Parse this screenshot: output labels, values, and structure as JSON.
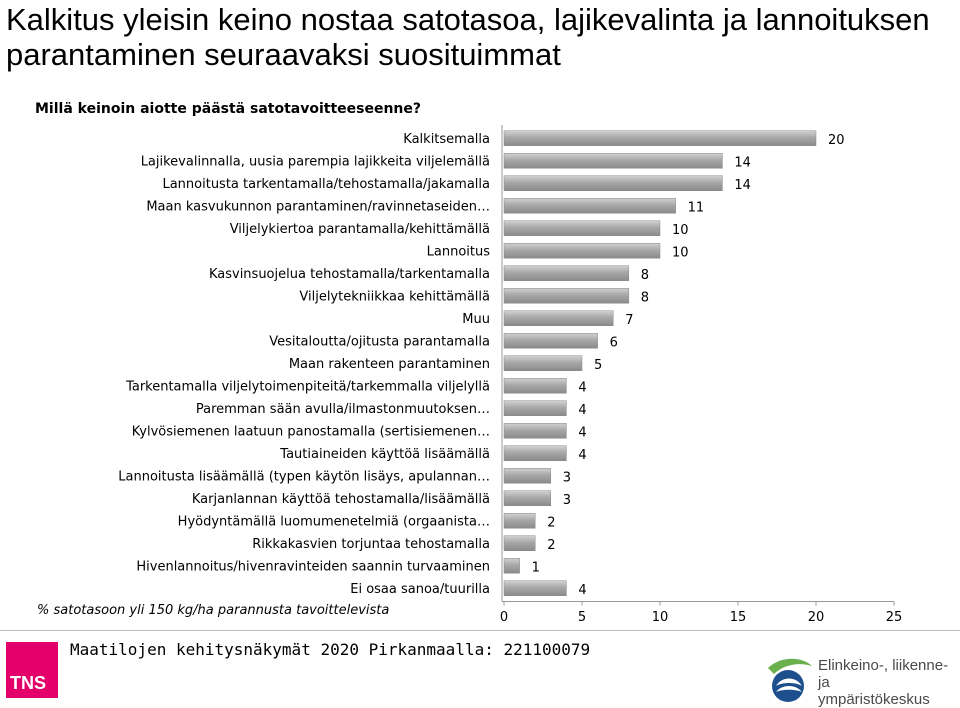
{
  "title": "Kalkitus yleisin keino nostaa satotasoa, lajikevalinta ja lannoituksen parantaminen seuraavaksi suosituimmat",
  "question": "Millä keinoin aiotte päästä satotavoitteeseenne?",
  "footnote": "% satotasoon yli 150 kg/ha parannusta tavoittelevista",
  "footer": {
    "text": "Maatilojen kehitysnäkymät 2020 Pirkanmaalla: 221100079",
    "tns_logo": "TNS",
    "ely_logo_line1": "Elinkeino-, liikenne- ja",
    "ely_logo_line2": "ympäristökeskus"
  },
  "colors": {
    "bar": "#9a9a9a",
    "bar_highlight": "#c8c8c8",
    "axis": "#999999",
    "tns_brand": "#e4006a"
  },
  "chart_data": {
    "type": "bar",
    "orientation": "horizontal",
    "categories": [
      "Kalkitsemalla",
      "Lajikevalinnalla, uusia parempia lajikkeita viljelemällä",
      "Lannoitusta tarkentamalla/tehostamalla/jakamalla",
      "Maan kasvukunnon parantaminen/ravinnetaseiden…",
      "Viljelykiertoa parantamalla/kehittämällä",
      "Lannoitus",
      "Kasvinsuojelua tehostamalla/tarkentamalla",
      "Viljelytekniikkaa kehittämällä",
      "Muu",
      "Vesitaloutta/ojitusta parantamalla",
      "Maan rakenteen parantaminen",
      "Tarkentamalla viljelytoimenpiteitä/tarkemmalla viljelyllä",
      "Paremman sään avulla/ilmastonmuutoksen…",
      "Kylvösiemenen laatuun panostamalla (sertisiemenen…",
      "Tautiaineiden käyttöä lisäämällä",
      "Lannoitusta lisäämällä (typen käytön lisäys, apulannan…",
      "Karjanlannan käyttöä tehostamalla/lisäämällä",
      "Hyödyntämällä luomumenetelmiä (orgaanista…",
      "Rikkakasvien torjuntaa tehostamalla",
      "Hivenlannoitus/hivenravinteiden saannin turvaaminen",
      "Ei osaa sanoa/tuurilla"
    ],
    "values": [
      20,
      14,
      14,
      11,
      10,
      10,
      8,
      8,
      7,
      6,
      5,
      4,
      4,
      4,
      4,
      3,
      3,
      2,
      2,
      1,
      4
    ],
    "value_labels": [
      "20",
      "14",
      "14",
      "11",
      "10",
      "10",
      "8",
      "8",
      "7",
      "6",
      "5",
      "4",
      "4",
      "4",
      "4",
      "3",
      "3",
      "2",
      "2",
      "1",
      "4"
    ],
    "xlim": [
      0,
      25
    ],
    "xticks": [
      0,
      5,
      10,
      15,
      20,
      25
    ],
    "xtick_labels": [
      "0",
      "5",
      "10",
      "15",
      "20",
      "25"
    ],
    "grid": false,
    "legend": "none"
  }
}
